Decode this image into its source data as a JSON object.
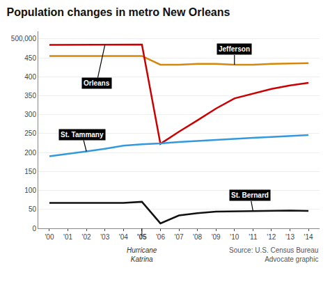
{
  "chart_data": {
    "type": "line",
    "title": "Population changes in metro New Orleans",
    "x": [
      2000,
      2001,
      2002,
      2003,
      2004,
      2005,
      2006,
      2007,
      2008,
      2009,
      2010,
      2011,
      2012,
      2013,
      2014
    ],
    "series": [
      {
        "name": "Jefferson",
        "color": "#D4880A",
        "values": [
          455000,
          455000,
          455000,
          456000,
          456000,
          455000,
          432000,
          432000,
          434000,
          434000,
          432000,
          432000,
          434000,
          435000,
          436000
        ]
      },
      {
        "name": "Orleans",
        "color": "#CC0000",
        "values": [
          484000,
          484000,
          484000,
          484000,
          485000,
          485000,
          223000,
          255000,
          285000,
          316000,
          343000,
          356000,
          368000,
          377000,
          384000
        ]
      },
      {
        "name": "St. Tammany",
        "color": "#3399DD",
        "values": [
          190000,
          196000,
          203000,
          210000,
          218000,
          222000,
          224000,
          228000,
          231000,
          234000,
          236000,
          239000,
          241000,
          243000,
          246000
        ]
      },
      {
        "name": "St. Bernard",
        "color": "#111111",
        "values": [
          67000,
          67000,
          67000,
          67000,
          67000,
          70000,
          13000,
          34000,
          40000,
          44000,
          45000,
          46000,
          47000,
          47000,
          46000
        ]
      }
    ],
    "xlim": [
      1999.4,
      2014.6
    ],
    "xticks": [
      {
        "value": 2000,
        "label": "'00"
      },
      {
        "value": 2001,
        "label": "'01"
      },
      {
        "value": 2002,
        "label": "'02"
      },
      {
        "value": 2003,
        "label": "'03"
      },
      {
        "value": 2004,
        "label": "'04"
      },
      {
        "value": 2005,
        "label": "'05"
      },
      {
        "value": 2006,
        "label": "'06"
      },
      {
        "value": 2007,
        "label": "'07"
      },
      {
        "value": 2008,
        "label": "'08"
      },
      {
        "value": 2009,
        "label": "'09"
      },
      {
        "value": 2010,
        "label": "'10"
      },
      {
        "value": 2011,
        "label": "'11"
      },
      {
        "value": 2012,
        "label": "'12"
      },
      {
        "value": 2013,
        "label": "'13"
      },
      {
        "value": 2014,
        "label": "'14"
      }
    ],
    "ylim": [
      0,
      520000
    ],
    "yticks": [
      0,
      {
        "value": 50000,
        "label": "50"
      },
      {
        "value": 100000,
        "label": "100"
      },
      {
        "value": 150000,
        "label": "150"
      },
      {
        "value": 200000,
        "label": "200"
      },
      {
        "value": 250000,
        "label": "250"
      },
      {
        "value": 300000,
        "label": "300"
      },
      {
        "value": 350000,
        "label": "350"
      },
      {
        "value": 400000,
        "label": "400"
      },
      {
        "value": 450000,
        "label": "450"
      },
      {
        "value": 500000,
        "label": "500,000"
      }
    ],
    "grid": "y",
    "annotations": [
      {
        "text": "Hurricane\nKatrina",
        "x": 2005
      },
      {
        "text": "Source: U.S. Census Bureau\nAdvocate graphic"
      }
    ]
  }
}
